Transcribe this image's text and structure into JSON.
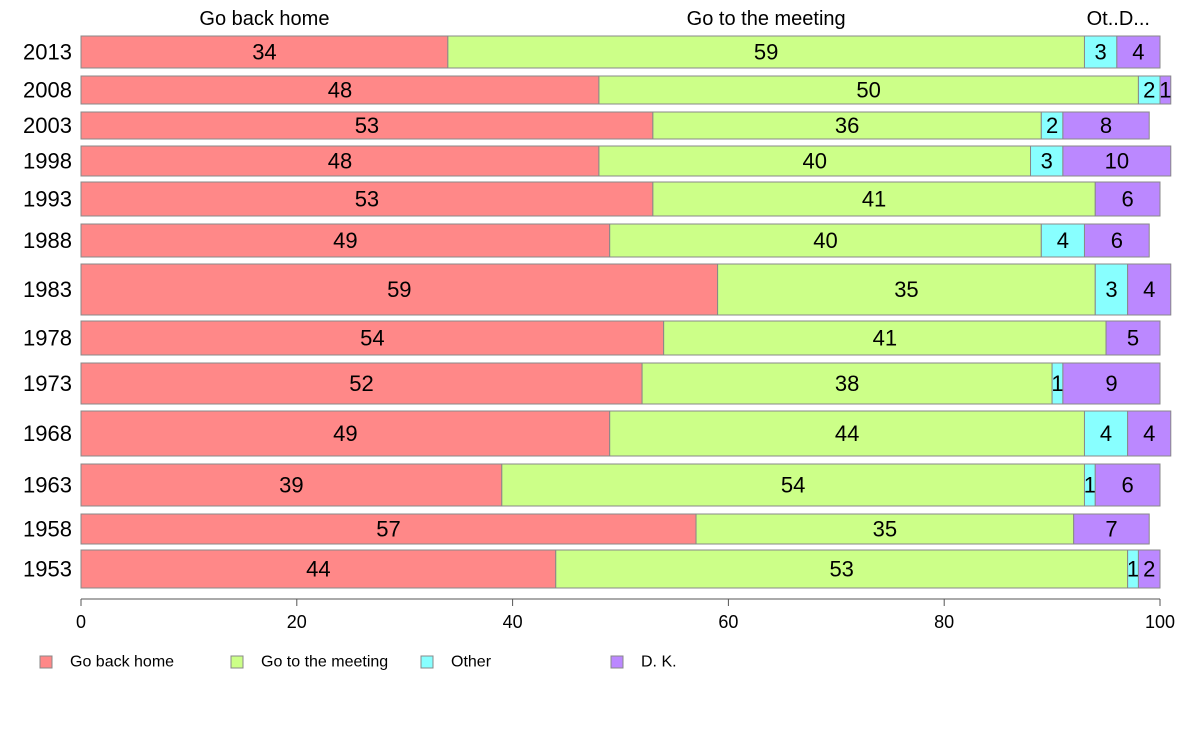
{
  "chart_data": {
    "type": "bar",
    "orientation": "horizontal",
    "stacked": true,
    "categories": [
      "2013",
      "2008",
      "2003",
      "1998",
      "1993",
      "1988",
      "1983",
      "1978",
      "1973",
      "1968",
      "1963",
      "1958",
      "1953"
    ],
    "series": [
      {
        "name": "Go back home",
        "color": "#ff8888",
        "values": [
          34,
          48,
          53,
          48,
          53,
          49,
          59,
          54,
          52,
          49,
          39,
          57,
          44
        ]
      },
      {
        "name": "Go to the meeting",
        "color": "#ccff88",
        "values": [
          59,
          50,
          36,
          40,
          41,
          40,
          35,
          41,
          38,
          44,
          54,
          35,
          53
        ]
      },
      {
        "name": "Other",
        "color": "#88ffff",
        "values": [
          3,
          2,
          2,
          3,
          0,
          4,
          3,
          0,
          1,
          4,
          1,
          0,
          1
        ]
      },
      {
        "name": "D. K.",
        "color": "#bb88ff",
        "values": [
          4,
          1,
          8,
          10,
          6,
          6,
          4,
          5,
          9,
          4,
          6,
          7,
          2
        ]
      }
    ],
    "column_headers": [
      "Go back home",
      "Go to the meeting",
      "Ot..",
      "D..."
    ],
    "xlim": [
      0,
      100
    ],
    "xticks": [
      0,
      20,
      40,
      60,
      80,
      100
    ],
    "grid": false,
    "legend_position": "bottom-left"
  }
}
